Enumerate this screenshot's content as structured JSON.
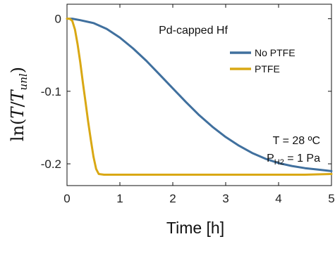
{
  "chart_data": {
    "type": "line",
    "title": "Pd-capped Hf",
    "xlabel": "Time [h]",
    "ylabel": {
      "prefix": "ln(",
      "num": "T",
      "slash": "/",
      "den": "T",
      "den_sub": "unl",
      "suffix": ")"
    },
    "xlim": [
      0,
      5
    ],
    "ylim": [
      -0.23,
      0.02
    ],
    "x_ticks": [
      0,
      1,
      2,
      3,
      4,
      5
    ],
    "y_ticks": [
      {
        "value": 0,
        "label": "0"
      },
      {
        "value": -0.1,
        "label": "-0.1"
      },
      {
        "value": -0.2,
        "label": "-0.2"
      }
    ],
    "legend_position": "top-right",
    "annotations": {
      "temperature": "T = 28 ºC",
      "pressure_prefix": "P",
      "pressure_sub": "H2",
      "pressure_suffix": " = 1 Pa"
    },
    "series": [
      {
        "name": "No PTFE",
        "color": "#40709e",
        "x": [
          0,
          0.1,
          0.25,
          0.5,
          0.75,
          1.0,
          1.25,
          1.5,
          1.75,
          2.0,
          2.25,
          2.5,
          2.75,
          3.0,
          3.25,
          3.5,
          3.75,
          4.0,
          4.25,
          4.5,
          4.75,
          5.0
        ],
        "y": [
          0,
          0,
          -0.002,
          -0.006,
          -0.014,
          -0.026,
          -0.041,
          -0.058,
          -0.077,
          -0.096,
          -0.115,
          -0.133,
          -0.149,
          -0.163,
          -0.175,
          -0.185,
          -0.193,
          -0.199,
          -0.203,
          -0.206,
          -0.208,
          -0.21
        ]
      },
      {
        "name": "PTFE",
        "color": "#d9a814",
        "x": [
          0,
          0.05,
          0.1,
          0.15,
          0.2,
          0.25,
          0.3,
          0.35,
          0.4,
          0.45,
          0.5,
          0.55,
          0.6,
          0.7,
          1.0,
          1.5,
          2.0,
          2.5,
          3.0,
          3.5,
          4.0,
          4.5,
          5.0
        ],
        "y": [
          0,
          0,
          -0.003,
          -0.015,
          -0.035,
          -0.06,
          -0.088,
          -0.115,
          -0.142,
          -0.167,
          -0.19,
          -0.207,
          -0.214,
          -0.215,
          -0.215,
          -0.215,
          -0.215,
          -0.215,
          -0.215,
          -0.215,
          -0.215,
          -0.215,
          -0.214
        ]
      }
    ]
  }
}
